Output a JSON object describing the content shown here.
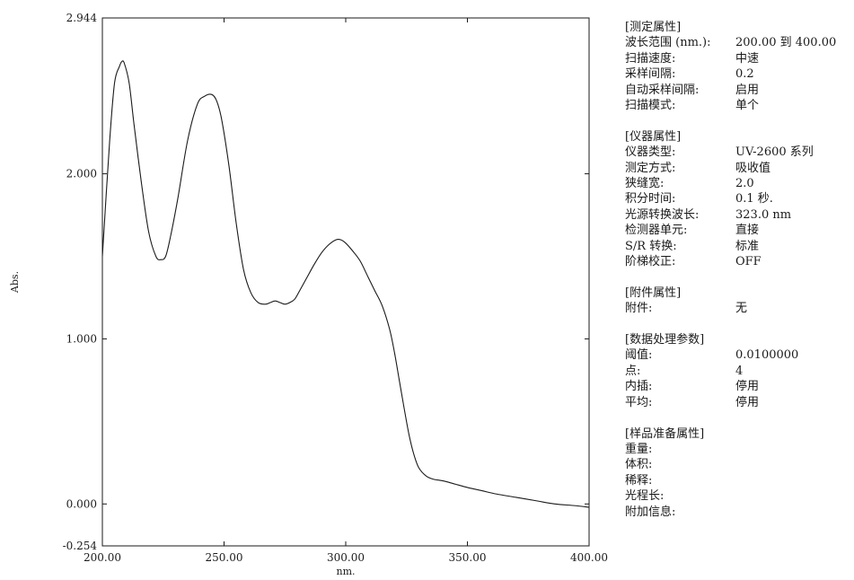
{
  "chart_data": {
    "type": "line",
    "xlabel": "nm.",
    "ylabel": "Abs.",
    "xlim": [
      200,
      400
    ],
    "ylim": [
      -0.254,
      2.944
    ],
    "x_ticks": [
      "200.00",
      "250.00",
      "300.00",
      "350.00",
      "400.00"
    ],
    "y_ticks": [
      {
        "value": 2.944,
        "label": "2.944"
      },
      {
        "value": 2.0,
        "label": "2.000"
      },
      {
        "value": 1.0,
        "label": "1.000"
      },
      {
        "value": 0.0,
        "label": "0.000"
      },
      {
        "value": -0.254,
        "label": "-0.254"
      }
    ],
    "grid": false,
    "series": [
      {
        "x": [
          200,
          203,
          205,
          207,
          208,
          209,
          211,
          213,
          216,
          219,
          222,
          224,
          226,
          228,
          231,
          235,
          239,
          242,
          245,
          247,
          249,
          252,
          255,
          258,
          261,
          264,
          267,
          269,
          271,
          273,
          275,
          277,
          279,
          281,
          284,
          287,
          290,
          293,
          296,
          298,
          300,
          303,
          306,
          309,
          312,
          315,
          318,
          320,
          322,
          324,
          326,
          328,
          330,
          333,
          336,
          340,
          345,
          350,
          356,
          362,
          370,
          378,
          386,
          394,
          400
        ],
        "y": [
          1.5,
          2.2,
          2.55,
          2.65,
          2.68,
          2.67,
          2.55,
          2.3,
          1.95,
          1.65,
          1.5,
          1.48,
          1.5,
          1.62,
          1.85,
          2.2,
          2.42,
          2.47,
          2.48,
          2.44,
          2.33,
          2.05,
          1.7,
          1.42,
          1.28,
          1.22,
          1.21,
          1.22,
          1.23,
          1.22,
          1.21,
          1.22,
          1.24,
          1.29,
          1.37,
          1.45,
          1.52,
          1.57,
          1.6,
          1.6,
          1.58,
          1.53,
          1.47,
          1.38,
          1.29,
          1.2,
          1.06,
          0.92,
          0.75,
          0.58,
          0.42,
          0.3,
          0.22,
          0.17,
          0.15,
          0.14,
          0.12,
          0.1,
          0.08,
          0.06,
          0.04,
          0.02,
          0.0,
          -0.01,
          -0.02
        ]
      }
    ]
  },
  "panel": {
    "sections": [
      {
        "title": "[测定属性]",
        "rows": [
          {
            "k": "波长范围 (nm.):",
            "v": "200.00 到 400.00"
          },
          {
            "k": "扫描速度:",
            "v": "中速"
          },
          {
            "k": "采样间隔:",
            "v": "0.2"
          },
          {
            "k": "自动采样间隔:",
            "v": "启用"
          },
          {
            "k": "扫描模式:",
            "v": "单个"
          }
        ]
      },
      {
        "title": "[仪器属性]",
        "rows": [
          {
            "k": "仪器类型:",
            "v": "UV-2600 系列"
          },
          {
            "k": "测定方式:",
            "v": "吸收值"
          },
          {
            "k": "狭缝宽:",
            "v": "2.0"
          },
          {
            "k": "积分时间:",
            "v": "0.1 秒."
          },
          {
            "k": "光源转换波长:",
            "v": "323.0 nm"
          },
          {
            "k": "检测器单元:",
            "v": "直接"
          },
          {
            "k": "S/R 转换:",
            "v": "标准"
          },
          {
            "k": "阶梯校正:",
            "v": "OFF"
          }
        ]
      },
      {
        "title": "[附件属性]",
        "rows": [
          {
            "k": "附件:",
            "v": "无"
          }
        ]
      },
      {
        "title": "[数据处理参数]",
        "rows": [
          {
            "k": "阈值:",
            "v": "0.0100000"
          },
          {
            "k": "点:",
            "v": "4"
          },
          {
            "k": "内插:",
            "v": "停用"
          },
          {
            "k": "平均:",
            "v": "停用"
          }
        ]
      },
      {
        "title": "[样品准备属性]",
        "rows": [
          {
            "k": "重量:",
            "v": ""
          },
          {
            "k": "体积:",
            "v": ""
          },
          {
            "k": "稀释:",
            "v": ""
          },
          {
            "k": "光程长:",
            "v": ""
          },
          {
            "k": "附加信息:",
            "v": ""
          }
        ]
      }
    ]
  }
}
